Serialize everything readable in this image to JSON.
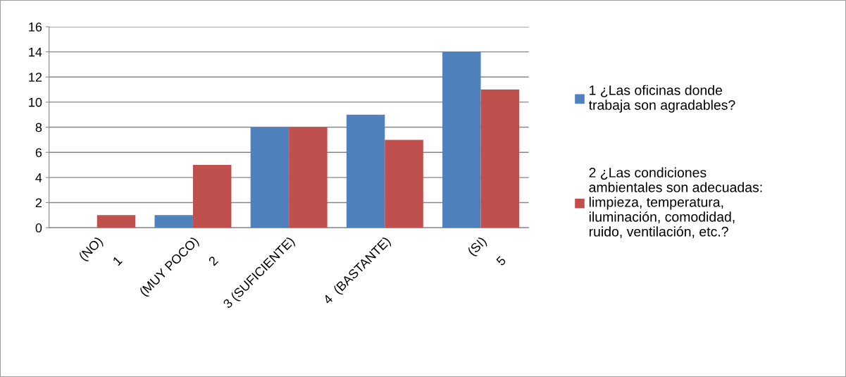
{
  "chart_data": {
    "type": "bar",
    "categories": [
      "(NO)\n\n1",
      "(MUY POCO)\n\n2",
      "3 (SUFICIENTE)",
      "4  (BASTANTE)",
      "(SI)\n\n5"
    ],
    "series": [
      {
        "name": "1 ¿Las oficinas donde\ntrabaja son agradables?",
        "color": "#4f81bd",
        "values": [
          0,
          1,
          8,
          9,
          14
        ]
      },
      {
        "name": "2 ¿Las condiciones\nambientales son adecuadas:\nlimpieza, temperatura,\niluminación, comodidad,\nruido, ventilación, etc.?",
        "color": "#c0504d",
        "values": [
          1,
          5,
          8,
          7,
          11
        ]
      }
    ],
    "ylim": [
      0,
      16
    ],
    "yticks": [
      0,
      2,
      4,
      6,
      8,
      10,
      12,
      14,
      16
    ],
    "grid": "y",
    "legend": "right"
  }
}
